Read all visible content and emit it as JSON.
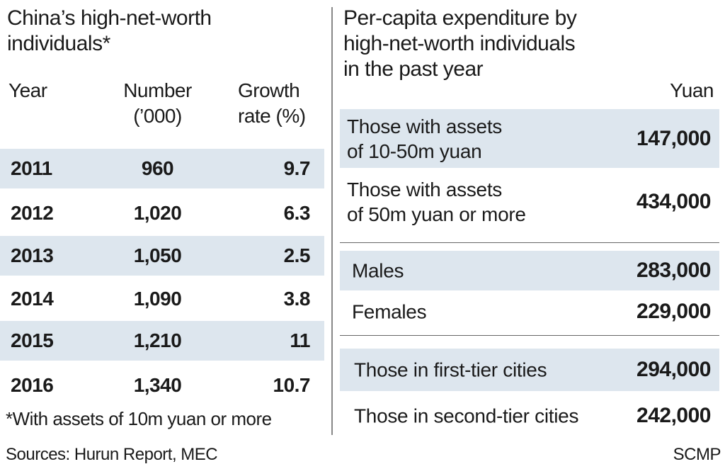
{
  "chart_data": [
    {
      "type": "table",
      "title": "China’s high-net-worth individuals*",
      "columns": [
        "Year",
        "Number (’000)",
        "Growth rate (%)"
      ],
      "rows": [
        [
          "2011",
          "960",
          "9.7"
        ],
        [
          "2012",
          "1,020",
          "6.3"
        ],
        [
          "2013",
          "1,050",
          "2.5"
        ],
        [
          "2014",
          "1,090",
          "3.8"
        ],
        [
          "2015",
          "1,210",
          "11"
        ],
        [
          "2016",
          "1,340",
          "10.7"
        ]
      ],
      "footnote": "*With assets of 10m yuan or more"
    },
    {
      "type": "table",
      "title": "Per-capita expenditure by high-net-worth individuals in the past year",
      "unit": "Yuan",
      "rows": [
        [
          "Those with assets of 10-50m yuan",
          "147,000"
        ],
        [
          "Those with assets of 50m yuan or more",
          "434,000"
        ],
        [
          "Males",
          "283,000"
        ],
        [
          "Females",
          "229,000"
        ],
        [
          "Those in first-tier cities",
          "294,000"
        ],
        [
          "Those in second-tier cities",
          "242,000"
        ]
      ]
    }
  ],
  "title_left_l1": "China’s high-net-worth",
  "title_left_l2": "individuals*",
  "col_year": "Year",
  "col_number_l1": "Number",
  "col_number_l2": "(’000)",
  "col_growth_l1": "Growth",
  "col_growth_l2": "rate (%)",
  "title_right_l1": "Per-capita expenditure by",
  "title_right_l2": "high-net-worth individuals",
  "title_right_l3": "in the past year",
  "r_labels": [
    [
      "Those with assets",
      "of 10-50m yuan"
    ],
    [
      "Those with assets",
      "of 50m yuan or more"
    ]
  ],
  "sources": "Sources:  Hurun Report, MEC",
  "credit": "SCMP",
  "shade_color": "#dde6ee"
}
